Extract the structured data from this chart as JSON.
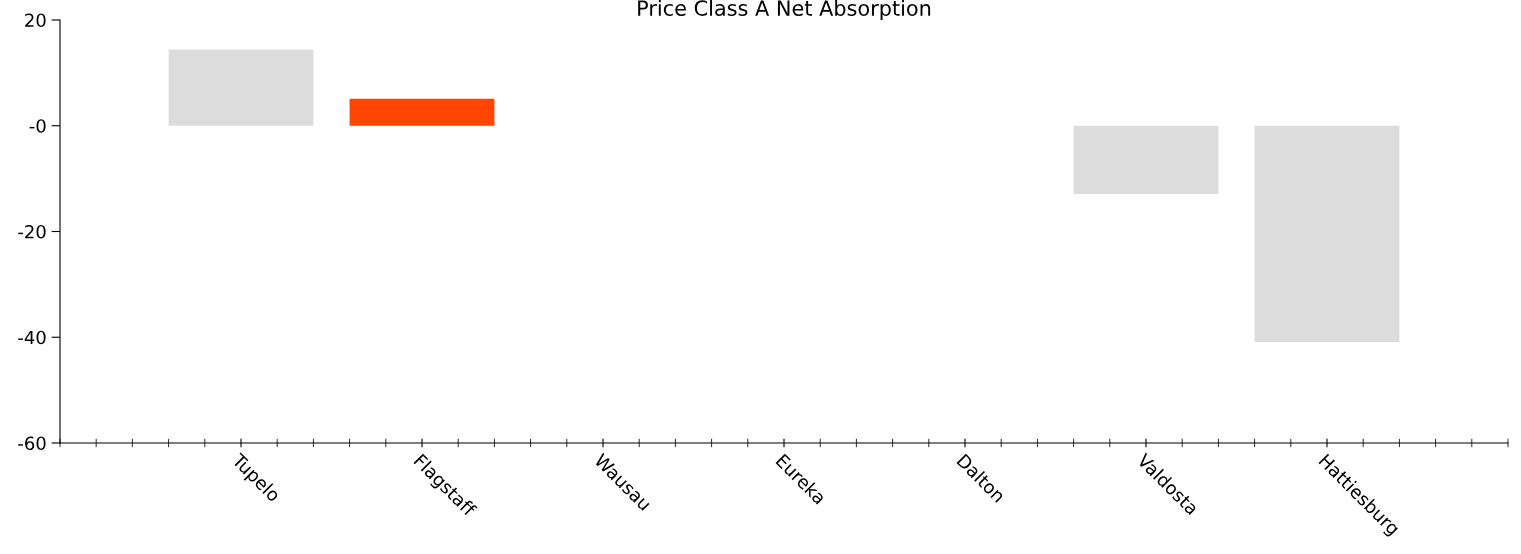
{
  "chart_data": {
    "type": "bar",
    "title": "Price Class A Net Absorption",
    "categories": [
      "Tupelo",
      "Flagstaff",
      "Wausau",
      "Eureka",
      "Dalton",
      "Valdosta",
      "Hattiesburg"
    ],
    "values": [
      14.4,
      5.1,
      null,
      null,
      null,
      -12.9,
      -40.9
    ],
    "colors": [
      "#dcdcdc",
      "#ff4500",
      "#dcdcdc",
      "#dcdcdc",
      "#dcdcdc",
      "#dcdcdc",
      "#dcdcdc"
    ],
    "ylim": [
      -60,
      20
    ],
    "yticks": [
      20,
      {
        "value": 0,
        "label": "-0"
      },
      -20,
      -40,
      -60
    ],
    "grid": false,
    "legend": false
  }
}
